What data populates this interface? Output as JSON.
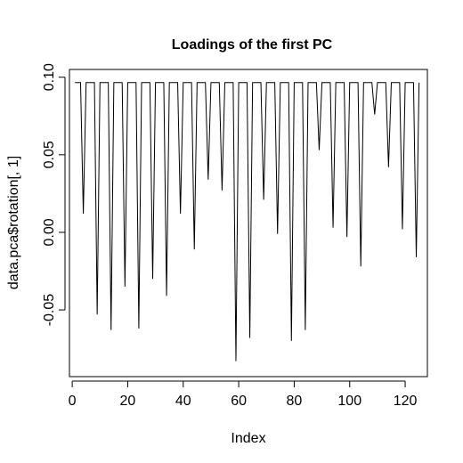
{
  "chart_data": {
    "type": "line",
    "title": "Loadings of the first PC",
    "xlabel": "Index",
    "ylabel": "data.pca$rotation[, 1]",
    "xlim": [
      -1,
      128
    ],
    "ylim": [
      -0.093,
      0.105
    ],
    "xticks": [
      0,
      20,
      40,
      60,
      80,
      100,
      120
    ],
    "xtick_labels": [
      "0",
      "20",
      "40",
      "60",
      "80",
      "100",
      "120"
    ],
    "yticks": [
      -0.05,
      0.0,
      0.05,
      0.1
    ],
    "ytick_labels": [
      "-0.05",
      "0.00",
      "0.05",
      "0.10"
    ],
    "grid": false,
    "legend": "none",
    "line_color": "#000000",
    "series": [
      {
        "x": [
          1,
          2,
          3,
          4,
          5,
          6,
          7,
          8,
          9,
          10,
          11,
          12,
          13,
          14,
          15,
          16,
          17,
          18,
          19,
          20,
          21,
          22,
          23,
          24,
          25,
          26,
          27,
          28,
          29,
          30,
          31,
          32,
          33,
          34,
          35,
          36,
          37,
          38,
          39,
          40,
          41,
          42,
          43,
          44,
          45,
          46,
          47,
          48,
          49,
          50,
          51,
          52,
          53,
          54,
          55,
          56,
          57,
          58,
          59,
          60,
          61,
          62,
          63,
          64,
          65,
          66,
          67,
          68,
          69,
          70,
          71,
          72,
          73,
          74,
          75,
          76,
          77,
          78,
          79,
          80,
          81,
          82,
          83,
          84,
          85,
          86,
          87,
          88,
          89,
          90,
          91,
          92,
          93,
          94,
          95,
          96,
          97,
          98,
          99,
          100,
          101,
          102,
          103,
          104,
          105,
          106,
          107,
          108,
          109,
          110,
          111,
          112,
          113,
          114,
          115,
          116,
          117,
          118,
          119,
          120,
          121,
          122,
          123,
          124,
          125
        ],
        "values": [
          0.0965,
          0.0965,
          0.0965,
          0.012,
          0.0965,
          0.0965,
          0.0965,
          0.0965,
          -0.053,
          0.0965,
          0.0965,
          0.0965,
          0.0965,
          -0.063,
          0.0965,
          0.0965,
          0.0965,
          0.0965,
          -0.035,
          0.0965,
          0.0965,
          0.0965,
          0.0965,
          -0.062,
          0.0965,
          0.0965,
          0.0965,
          0.0965,
          -0.03,
          0.0965,
          0.0965,
          0.0965,
          0.0965,
          -0.041,
          0.0965,
          0.0965,
          0.0965,
          0.0965,
          0.012,
          0.0965,
          0.0965,
          0.0965,
          0.0965,
          -0.011,
          0.0965,
          0.0965,
          0.0965,
          0.0965,
          0.034,
          0.0965,
          0.0965,
          0.0965,
          0.0965,
          0.027,
          0.0965,
          0.0965,
          0.0965,
          0.0965,
          -0.083,
          0.0965,
          0.0965,
          0.0965,
          0.0965,
          -0.068,
          0.0965,
          0.0965,
          0.0965,
          0.0965,
          0.021,
          0.0965,
          0.0965,
          0.0965,
          0.0965,
          -0.001,
          0.0965,
          0.0965,
          0.0965,
          0.0965,
          -0.07,
          0.0965,
          0.0965,
          0.0965,
          0.0965,
          -0.063,
          0.0965,
          0.0965,
          0.0965,
          0.0965,
          0.053,
          0.0965,
          0.0965,
          0.0965,
          0.0965,
          0.003,
          0.0965,
          0.0965,
          0.0965,
          0.0965,
          -0.003,
          0.0965,
          0.0965,
          0.0965,
          0.0965,
          -0.022,
          0.0965,
          0.0965,
          0.0965,
          0.0965,
          0.076,
          0.0965,
          0.0965,
          0.0965,
          0.0965,
          0.042,
          0.0965,
          0.0965,
          0.0965,
          0.0965,
          0.002,
          0.0965,
          0.0965,
          0.0965,
          0.0965,
          -0.016,
          0.0965
        ]
      }
    ]
  }
}
